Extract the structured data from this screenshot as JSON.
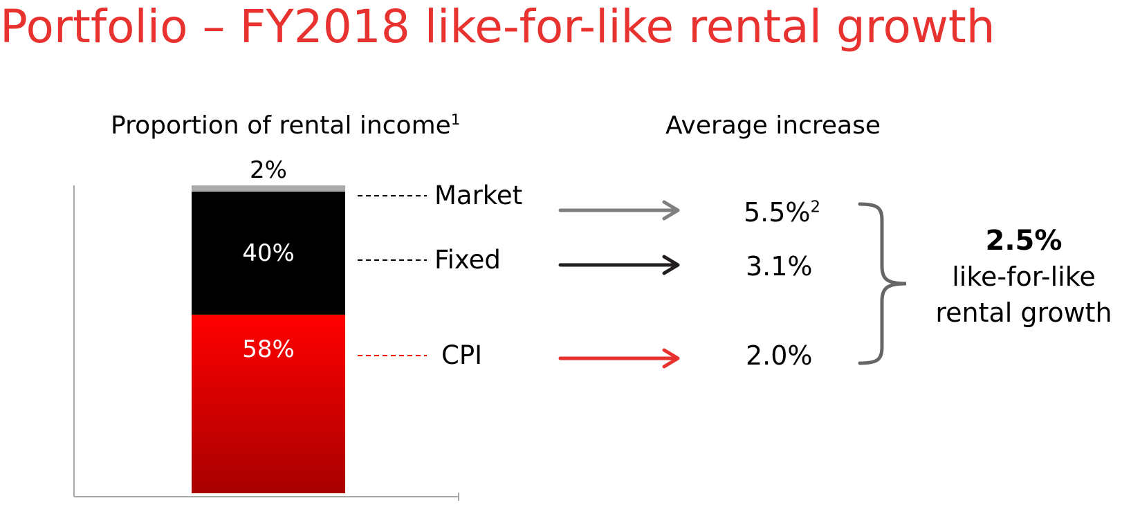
{
  "title": "Portfolio – FY2018 like-for-like rental growth",
  "colors": {
    "title": "#e8322f",
    "market": "#aaaaaa",
    "fixed": "#000000",
    "cpi": "#ff0000",
    "cpi_dark": "#a80000",
    "arrow_market": "#7f7f7f",
    "arrow_fixed": "#231f20",
    "arrow_cpi": "#e8322f",
    "brace": "#666666"
  },
  "chart_data": {
    "type": "bar",
    "stacked": true,
    "title": "Proportion of rental income",
    "title_superscript": "1",
    "ylim": [
      0,
      100
    ],
    "grid": false,
    "series": [
      {
        "name": "CPI",
        "value": 58,
        "label": "58%"
      },
      {
        "name": "Fixed",
        "value": 40,
        "label": "40%"
      },
      {
        "name": "Market",
        "value": 2,
        "label": "2%"
      }
    ]
  },
  "increase": {
    "title": "Average increase",
    "items": [
      {
        "name": "Market",
        "value": "5.5%",
        "superscript": "2"
      },
      {
        "name": "Fixed",
        "value": "3.1%"
      },
      {
        "name": "CPI",
        "value": "2.0%"
      }
    ]
  },
  "summary": {
    "value": "2.5%",
    "label": "like-for-like rental growth"
  }
}
